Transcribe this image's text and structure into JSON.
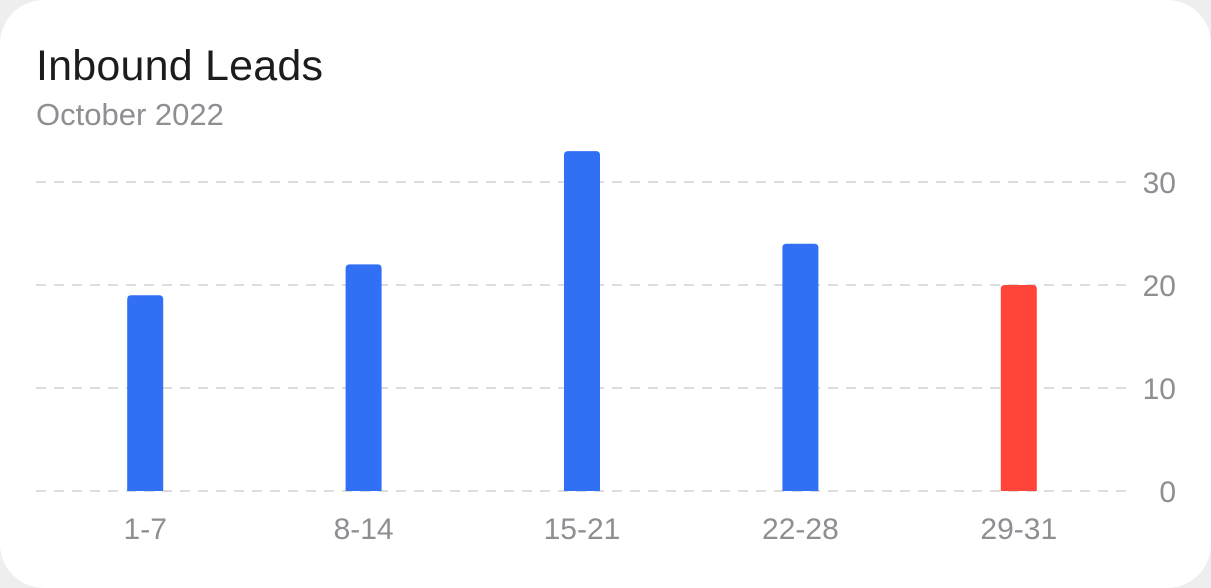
{
  "card": {
    "title": "Inbound Leads",
    "subtitle": "October 2022"
  },
  "colors": {
    "bar_default": "#3170f5",
    "bar_highlight": "#ff453a",
    "grid": "#dcdcdc",
    "tick_text": "#8e8e93",
    "title_text": "#1c1c1e"
  },
  "chart_data": {
    "type": "bar",
    "categories": [
      "1-7",
      "8-14",
      "15-21",
      "22-28",
      "29-31"
    ],
    "values": [
      19,
      22,
      33,
      24,
      20
    ],
    "highlight_index": 4,
    "ylim": [
      0,
      30
    ],
    "yticks": [
      0,
      10,
      20,
      30
    ],
    "grid": true,
    "grid_style": "dashed",
    "y_axis_side": "right",
    "xlabel": "",
    "ylabel": ""
  }
}
